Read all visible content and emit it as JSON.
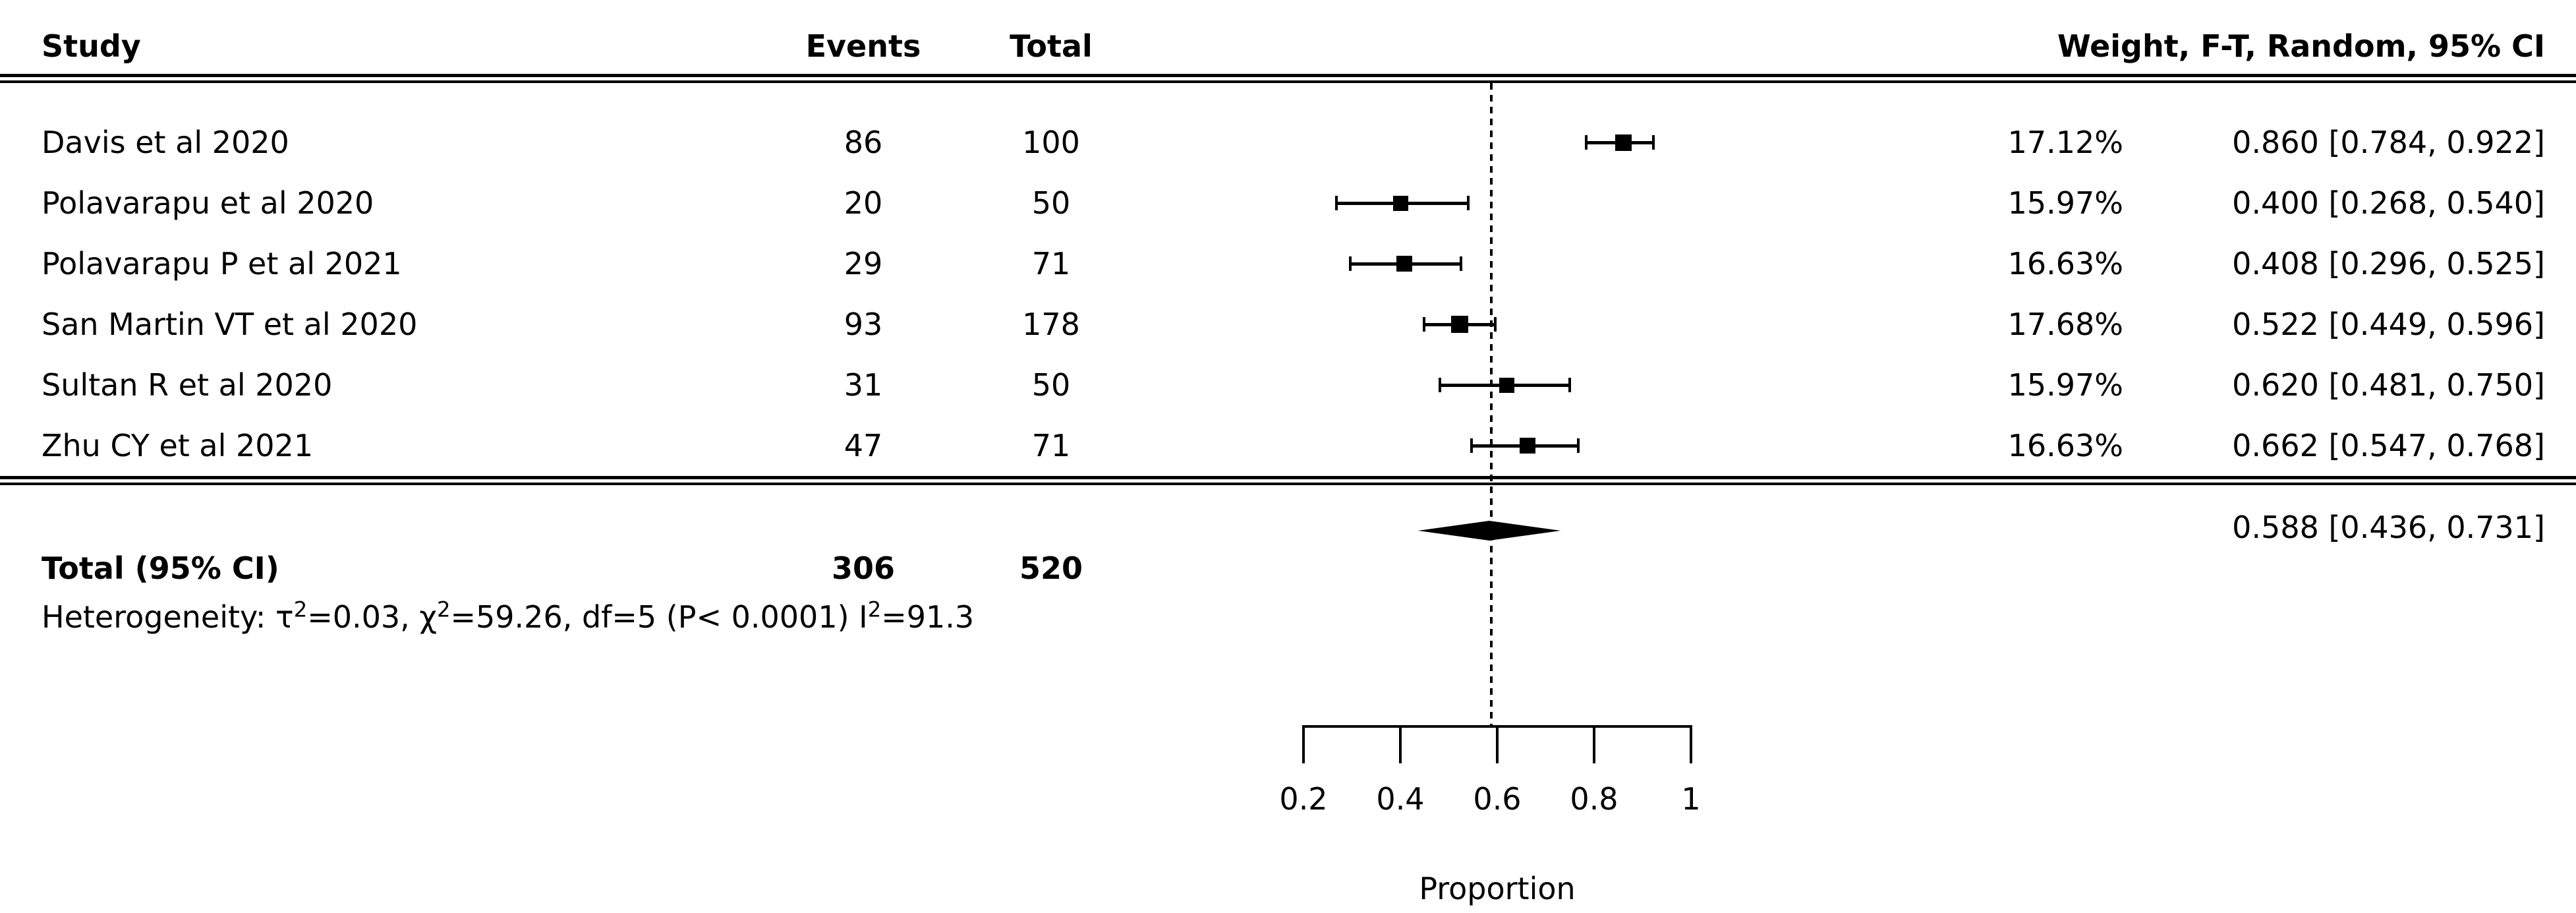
{
  "header": {
    "study": "Study",
    "events": "Events",
    "total": "Total",
    "effect": "Weight, F-T, Random, 95% CI"
  },
  "chart_data": {
    "type": "forest",
    "xlabel": "Proportion",
    "x_ticks": [
      0.2,
      0.4,
      0.6,
      0.8,
      1
    ],
    "x_tick_labels": [
      "0.2",
      "0.4",
      "0.6",
      "0.8",
      "1"
    ],
    "xlim": [
      0.2,
      1
    ],
    "reference_line": 0.588,
    "model": "F-T, Random, 95% CI",
    "studies": [
      {
        "name": "Davis et al 2020",
        "events": "86",
        "total": "100",
        "weight_label": "17.12%",
        "weight_value": 17.12,
        "estimate": 0.86,
        "ci_lower": 0.784,
        "ci_upper": 0.922,
        "ci_label": "0.860 [0.784, 0.922]"
      },
      {
        "name": "Polavarapu et al 2020",
        "events": "20",
        "total": "50",
        "weight_label": "15.97%",
        "weight_value": 15.97,
        "estimate": 0.4,
        "ci_lower": 0.268,
        "ci_upper": 0.54,
        "ci_label": "0.400 [0.268, 0.540]"
      },
      {
        "name": "Polavarapu P et al 2021",
        "events": "29",
        "total": "71",
        "weight_label": "16.63%",
        "weight_value": 16.63,
        "estimate": 0.408,
        "ci_lower": 0.296,
        "ci_upper": 0.525,
        "ci_label": "0.408 [0.296, 0.525]"
      },
      {
        "name": "San Martin VT et al 2020",
        "events": "93",
        "total": "178",
        "weight_label": "17.68%",
        "weight_value": 17.68,
        "estimate": 0.522,
        "ci_lower": 0.449,
        "ci_upper": 0.596,
        "ci_label": "0.522 [0.449, 0.596]"
      },
      {
        "name": "Sultan R et al 2020",
        "events": "31",
        "total": "50",
        "weight_label": "15.97%",
        "weight_value": 15.97,
        "estimate": 0.62,
        "ci_lower": 0.481,
        "ci_upper": 0.75,
        "ci_label": "0.620 [0.481, 0.750]"
      },
      {
        "name": "Zhu CY et al 2021",
        "events": "47",
        "total": "71",
        "weight_label": "16.63%",
        "weight_value": 16.63,
        "estimate": 0.662,
        "ci_lower": 0.547,
        "ci_upper": 0.768,
        "ci_label": "0.662 [0.547, 0.768]"
      }
    ],
    "pooled": {
      "label": "Total (95% CI)",
      "events": "306",
      "total": "520",
      "estimate": 0.588,
      "ci_lower": 0.436,
      "ci_upper": 0.731,
      "ci_label": "0.588 [0.436, 0.731]"
    },
    "heterogeneity": "Heterogeneity: τ²=0.03, χ²=59.26, df=5 (P< 0.0001) I²=91.3"
  },
  "colors": {
    "foreground": "#000000",
    "background": "#ffffff"
  }
}
